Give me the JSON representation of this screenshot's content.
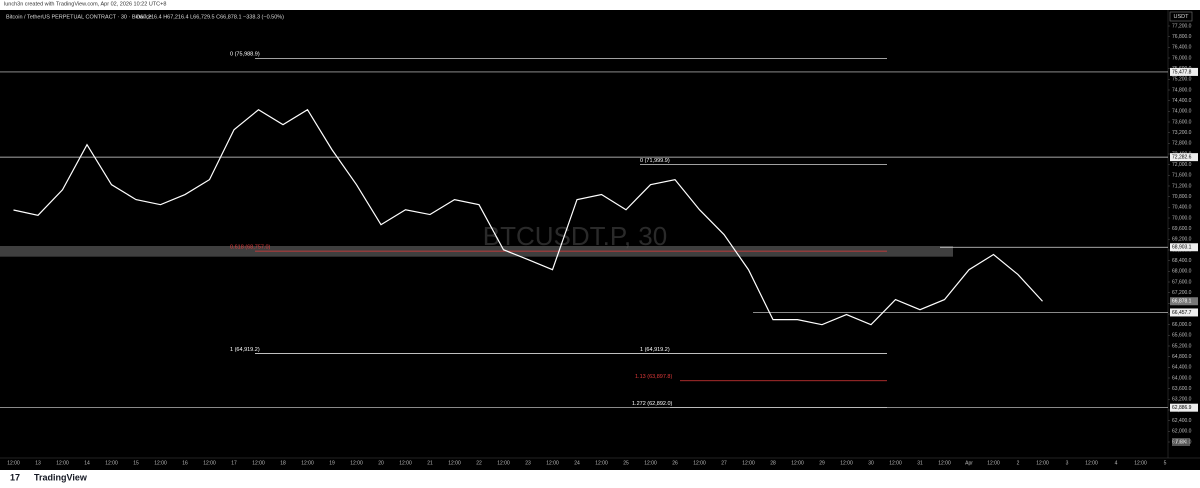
{
  "header": {
    "credit": "lunch3n created with TradingView.com, Apr 02, 2026 10:22 UTC+8",
    "symbol": "Bitcoin / TetherUS PERPETUAL CONTRACT · 30 · Binance",
    "ohlc": "O67,216.4 H67,216.4 L66,729.5 C66,878.1 −338.3 (−0.50%)"
  },
  "currency": "USDT",
  "footer": "TradingView",
  "volume_label": "7.8K",
  "chart_data": {
    "type": "line",
    "watermark": "BTCUSDT.P, 30",
    "color": "#ffffff",
    "categories": [
      "12:00",
      "13",
      "12:00",
      "14",
      "12:00",
      "15",
      "12:00",
      "16",
      "12:00",
      "17",
      "12:00",
      "18",
      "12:00",
      "19",
      "12:00",
      "20",
      "12:00",
      "21",
      "12:00",
      "22",
      "12:00",
      "23",
      "12:00",
      "24",
      "12:00",
      "25",
      "12:00",
      "26",
      "12:00",
      "27",
      "12:00",
      "28",
      "12:00",
      "29",
      "12:00",
      "30",
      "12:00",
      "31",
      "12:00",
      "Apr",
      "12:00",
      "2",
      "12:00",
      "3",
      "12:00",
      "4",
      "12:00",
      "5"
    ],
    "series": [
      {
        "name": "BTCUSDT.P",
        "color": "#ffffff",
        "values": [
          70300,
          70100,
          71060,
          72750,
          71250,
          70690,
          70500,
          70880,
          71440,
          73310,
          74060,
          73500,
          74060,
          72560,
          71250,
          69750,
          70310,
          70130,
          70690,
          70500,
          68810,
          68440,
          68060,
          70690,
          70880,
          70310,
          71250,
          71440,
          70310,
          69380,
          68060,
          66190,
          66190,
          66000,
          66380,
          66000,
          66940,
          66560,
          66940,
          68060,
          68630,
          67880,
          66878.1,
          null,
          null,
          null,
          null,
          null
        ]
      }
    ],
    "ylim": [
      61000,
      77800
    ],
    "yticks": [
      {
        "value": 61600,
        "label": "61,600.0"
      },
      {
        "value": 62000,
        "label": "62,000.0"
      },
      {
        "value": 62400,
        "label": "62,400.0"
      },
      {
        "value": 62800,
        "label": "62,800.0"
      },
      {
        "value": 63200,
        "label": "63,200.0"
      },
      {
        "value": 63600,
        "label": "63,600.0"
      },
      {
        "value": 64000,
        "label": "64,000.0"
      },
      {
        "value": 64400,
        "label": "64,400.0"
      },
      {
        "value": 64800,
        "label": "64,800.0"
      },
      {
        "value": 65200,
        "label": "65,200.0"
      },
      {
        "value": 65600,
        "label": "65,600.0"
      },
      {
        "value": 66000,
        "label": "66,000.0"
      },
      {
        "value": 66400,
        "label": "66,400.0"
      },
      {
        "value": 66800,
        "label": "66,800.0"
      },
      {
        "value": 67200,
        "label": "67,200.0"
      },
      {
        "value": 67600,
        "label": "67,600.0"
      },
      {
        "value": 68000,
        "label": "68,000.0"
      },
      {
        "value": 68400,
        "label": "68,400.0"
      },
      {
        "value": 68800,
        "label": "68,800.0"
      },
      {
        "value": 69200,
        "label": "69,200.0"
      },
      {
        "value": 69600,
        "label": "69,600.0"
      },
      {
        "value": 70000,
        "label": "70,000.0"
      },
      {
        "value": 70400,
        "label": "70,400.0"
      },
      {
        "value": 70800,
        "label": "70,800.0"
      },
      {
        "value": 71200,
        "label": "71,200.0"
      },
      {
        "value": 71600,
        "label": "71,600.0"
      },
      {
        "value": 72000,
        "label": "72,000.0"
      },
      {
        "value": 72400,
        "label": "72,400.0"
      },
      {
        "value": 72800,
        "label": "72,800.0"
      },
      {
        "value": 73200,
        "label": "73,200.0"
      },
      {
        "value": 73600,
        "label": "73,600.0"
      },
      {
        "value": 74000,
        "label": "74,000.0"
      },
      {
        "value": 74400,
        "label": "74,400.0"
      },
      {
        "value": 74800,
        "label": "74,800.0"
      },
      {
        "value": 75200,
        "label": "75,200.0"
      },
      {
        "value": 75600,
        "label": "75,600.0"
      },
      {
        "value": 76000,
        "label": "76,000.0"
      },
      {
        "value": 76400,
        "label": "76,400.0"
      },
      {
        "value": 76800,
        "label": "76,800.0"
      },
      {
        "value": 77200,
        "label": "77,200.0"
      }
    ],
    "price_lines": [
      {
        "value": 75477.8,
        "label": "75,477.8"
      },
      {
        "value": 72282.6,
        "label": "72,282.6"
      },
      {
        "value": 68903.1,
        "label": "68,903.1"
      },
      {
        "value": 66878.1,
        "label": "66,878.1"
      },
      {
        "value": 66457.7,
        "label": "66,457.7"
      },
      {
        "value": 62886.9,
        "label": "62,886.9"
      }
    ],
    "levels": [
      {
        "value": 75988.9,
        "label": "0 (75,988.9)",
        "color": "#ffffff"
      },
      {
        "value": 71999.9,
        "label": "0 (71,999.9)",
        "color": "#ffffff"
      },
      {
        "value": 68757.0,
        "label": "0.618 (68,757.0)",
        "color": "#e03a3a"
      },
      {
        "value": 64919.2,
        "label": "1 (64,919.2)",
        "color": "#ffffff"
      },
      {
        "value": 64919.2,
        "label": "1 (64,919.2)",
        "color": "#ffffff"
      },
      {
        "value": 63897.8,
        "label": "1.13 (63,897.8)",
        "color": "#e03a3a"
      },
      {
        "value": 62892.0,
        "label": "1.272 (62,892.0)",
        "color": "#ffffff"
      }
    ],
    "zone": [
      68550,
      68950
    ]
  }
}
